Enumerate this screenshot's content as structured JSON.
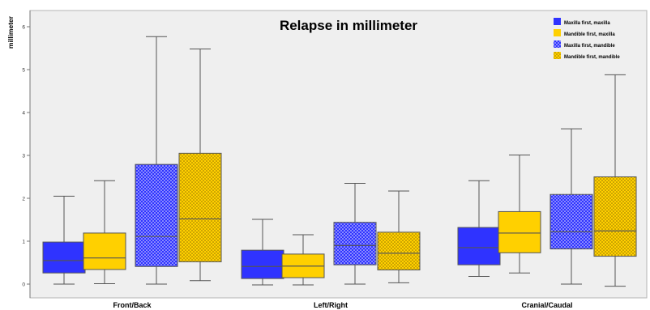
{
  "chart_data": {
    "type": "boxplot",
    "title": "Relapse in millimeter",
    "xlabel": "",
    "ylabel": "millimeter",
    "ylim": [
      -0.3,
      6.3
    ],
    "yticks": [
      "0",
      "1",
      "2",
      "3",
      "4",
      "5",
      "6"
    ],
    "categories": [
      "Front/Back",
      "Left/Right",
      "Cranial/Caudal"
    ],
    "grid": false,
    "legend_position": "top-right",
    "series": [
      {
        "name": "Maxilla first, maxilla",
        "color": "#2f33ff",
        "pattern": "solid",
        "boxes": [
          {
            "min": 0.0,
            "q1": 0.26,
            "median": 0.55,
            "q3": 0.98,
            "max": 2.05
          },
          {
            "min": -0.02,
            "q1": 0.13,
            "median": 0.41,
            "q3": 0.79,
            "max": 1.51
          },
          {
            "min": 0.18,
            "q1": 0.45,
            "median": 0.85,
            "q3": 1.32,
            "max": 2.41
          }
        ]
      },
      {
        "name": "Mandible first, maxilla",
        "color": "#ffd000",
        "pattern": "solid",
        "boxes": [
          {
            "min": 0.01,
            "q1": 0.34,
            "median": 0.61,
            "q3": 1.19,
            "max": 2.41
          },
          {
            "min": -0.02,
            "q1": 0.15,
            "median": 0.42,
            "q3": 0.7,
            "max": 1.15
          },
          {
            "min": 0.26,
            "q1": 0.73,
            "median": 1.19,
            "q3": 1.69,
            "max": 3.01
          }
        ]
      },
      {
        "name": "Maxilla first, mandible",
        "color": "#2f33ff",
        "pattern": "dotted",
        "boxes": [
          {
            "min": 0.0,
            "q1": 0.41,
            "median": 1.11,
            "q3": 2.79,
            "max": 5.77
          },
          {
            "min": 0.0,
            "q1": 0.45,
            "median": 0.9,
            "q3": 1.44,
            "max": 2.35
          },
          {
            "min": 0.0,
            "q1": 0.82,
            "median": 1.22,
            "q3": 2.09,
            "max": 3.62
          }
        ]
      },
      {
        "name": "Mandible first, mandible",
        "color": "#ffd000",
        "pattern": "dotted",
        "boxes": [
          {
            "min": 0.08,
            "q1": 0.52,
            "median": 1.52,
            "q3": 3.05,
            "max": 5.48
          },
          {
            "min": 0.03,
            "q1": 0.33,
            "median": 0.72,
            "q3": 1.21,
            "max": 2.17
          },
          {
            "min": -0.05,
            "q1": 0.65,
            "median": 1.24,
            "q3": 2.5,
            "max": 4.88
          }
        ]
      }
    ]
  }
}
